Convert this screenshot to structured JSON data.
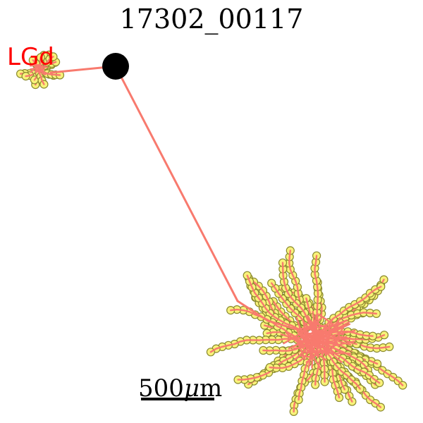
{
  "title": "17302_00117",
  "region_label": "LGd",
  "scale_bar": {
    "value": "500",
    "unit_prefix": "μ",
    "unit": "m"
  },
  "colors": {
    "axon": "#f87a6e",
    "bouton_fill": "#f8f27a",
    "bouton_stroke": "#8a8a2e",
    "soma": "#000000",
    "region_label": "#ff0000",
    "background": "#ffffff"
  }
}
